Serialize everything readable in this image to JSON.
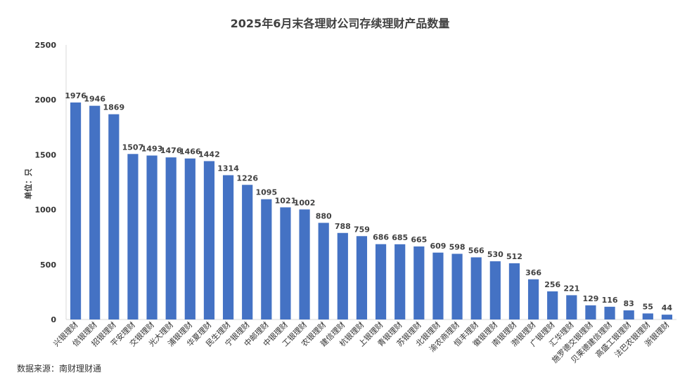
{
  "chart_data": {
    "type": "bar",
    "title": "2025年6月末各理财公司存续理财产品数量",
    "ylabel": "单位：只",
    "xlabel": "",
    "ylim": [
      0,
      2500
    ],
    "yticks": [
      0,
      500,
      1000,
      1500,
      2000,
      2500
    ],
    "grid": false,
    "legend": "none",
    "bar_color": "#4472C4",
    "categories": [
      "兴银理财",
      "信银理财",
      "招银理财",
      "平安理财",
      "交银理财",
      "光大理财",
      "浦银理财",
      "华夏理财",
      "民生理财",
      "宁银理财",
      "中邮理财",
      "中银理财",
      "工银理财",
      "农银理财",
      "建信理财",
      "杭银理财",
      "上银理财",
      "青银理财",
      "苏银理财",
      "北银理财",
      "渝农商理财",
      "恒丰理财",
      "徽银理财",
      "南银理财",
      "渤银理财",
      "广银理财",
      "汇华理财",
      "施罗德交银理财",
      "贝莱德建信理财",
      "高盛工银理财",
      "法巴农银理财",
      "浙银理财"
    ],
    "values": [
      1976,
      1946,
      1869,
      1507,
      1493,
      1476,
      1466,
      1442,
      1314,
      1226,
      1095,
      1021,
      1002,
      880,
      788,
      759,
      686,
      685,
      665,
      609,
      598,
      566,
      530,
      512,
      366,
      256,
      221,
      129,
      116,
      83,
      55,
      44
    ]
  },
  "source": "数据来源：南财理财通"
}
